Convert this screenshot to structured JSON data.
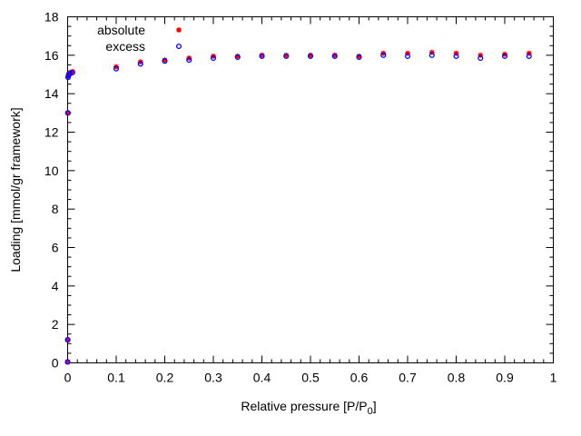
{
  "chart_data": {
    "type": "scatter",
    "xlabel_main": "Relative pressure [P/P",
    "xlabel_sub": "0",
    "xlabel_close": "]",
    "ylabel": "Loading [mmol/gr framework]",
    "xlim": [
      0,
      1
    ],
    "ylim": [
      0,
      18
    ],
    "x_ticks": [
      0,
      0.1,
      0.2,
      0.3,
      0.4,
      0.5,
      0.6,
      0.7,
      0.8,
      0.9,
      1
    ],
    "x_tick_labels": [
      "0",
      "0.1",
      "0.2",
      "0.3",
      "0.4",
      "0.5",
      "0.6",
      "0.7",
      "0.8",
      "0.9",
      "1"
    ],
    "y_ticks": [
      0,
      2,
      4,
      6,
      8,
      10,
      12,
      14,
      16,
      18
    ],
    "y_tick_labels": [
      "0",
      "2",
      "4",
      "6",
      "8",
      "10",
      "12",
      "14",
      "16",
      "18"
    ],
    "grid": false,
    "legend_position": "top-left",
    "series": [
      {
        "name": "absolute",
        "color": "#ff0000",
        "marker": "filled-asterisk",
        "x": [
          0.0,
          0.0002,
          0.0005,
          0.001,
          0.002,
          0.003,
          0.005,
          0.01,
          0.1,
          0.15,
          0.2,
          0.25,
          0.3,
          0.35,
          0.4,
          0.45,
          0.5,
          0.55,
          0.6,
          0.65,
          0.7,
          0.75,
          0.8,
          0.85,
          0.9,
          0.95
        ],
        "y": [
          0.05,
          1.2,
          13.0,
          14.9,
          15.0,
          15.05,
          15.1,
          15.15,
          15.4,
          15.65,
          15.75,
          15.85,
          15.95,
          15.95,
          16.0,
          16.0,
          16.0,
          16.0,
          15.95,
          16.1,
          16.1,
          16.15,
          16.1,
          16.0,
          16.05,
          16.1
        ]
      },
      {
        "name": "excess",
        "color": "#0000ff",
        "marker": "open-circle",
        "x": [
          0.0,
          0.0002,
          0.0005,
          0.001,
          0.002,
          0.003,
          0.005,
          0.01,
          0.1,
          0.15,
          0.2,
          0.25,
          0.3,
          0.35,
          0.4,
          0.45,
          0.5,
          0.55,
          0.6,
          0.65,
          0.7,
          0.75,
          0.8,
          0.85,
          0.9,
          0.95
        ],
        "y": [
          0.05,
          1.2,
          13.0,
          14.85,
          14.95,
          15.0,
          15.05,
          15.1,
          15.3,
          15.55,
          15.7,
          15.75,
          15.85,
          15.9,
          15.95,
          15.95,
          15.95,
          15.95,
          15.9,
          16.0,
          15.95,
          16.0,
          15.95,
          15.85,
          15.95,
          15.95
        ]
      }
    ]
  }
}
